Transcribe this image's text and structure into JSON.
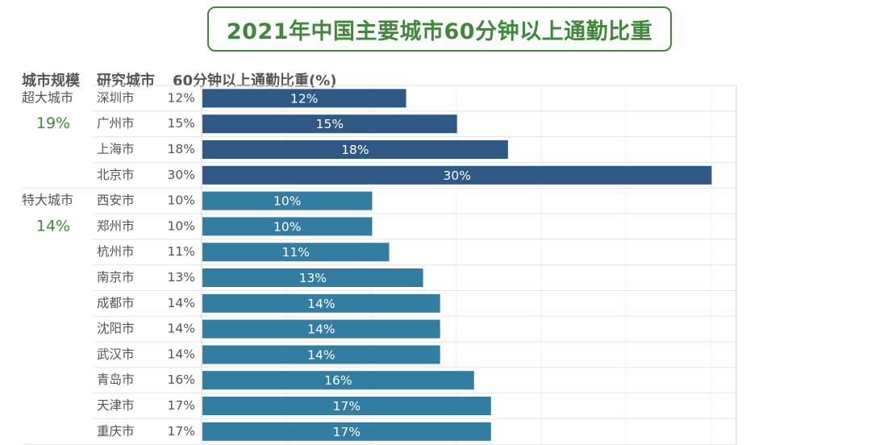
{
  "title": "2021年中国主要城市60分钟以上通勤比重",
  "headers": {
    "size": "城市规模",
    "city": "研究城市",
    "value": "60分钟以上通勤比重(%)"
  },
  "colors": {
    "title": "#3e8a3a",
    "group_value": "#3e8a3a",
    "super_city_bar": "#2e5886",
    "mega_city_bar": "#337da2",
    "grid": "#e4e4e4"
  },
  "chart_data": {
    "type": "bar",
    "orientation": "horizontal",
    "title": "2021年中国主要城市60分钟以上通勤比重",
    "xlabel": "60分钟以上通勤比重(%)",
    "ylabel": "研究城市",
    "xlim": [
      0,
      31.5
    ],
    "grid": true,
    "value_suffix": "%",
    "groups": [
      {
        "name": "超大城市",
        "value": "19%",
        "color": "#2e5886",
        "categories": [
          "深圳市",
          "广州市",
          "上海市",
          "北京市"
        ],
        "values": [
          12,
          15,
          18,
          30
        ]
      },
      {
        "name": "特大城市",
        "value": "14%",
        "color": "#337da2",
        "categories": [
          "西安市",
          "郑州市",
          "杭州市",
          "南京市",
          "成都市",
          "沈阳市",
          "武汉市",
          "青岛市",
          "天津市",
          "重庆市"
        ],
        "values": [
          10,
          10,
          11,
          13,
          14,
          14,
          14,
          16,
          17,
          17
        ]
      }
    ]
  }
}
